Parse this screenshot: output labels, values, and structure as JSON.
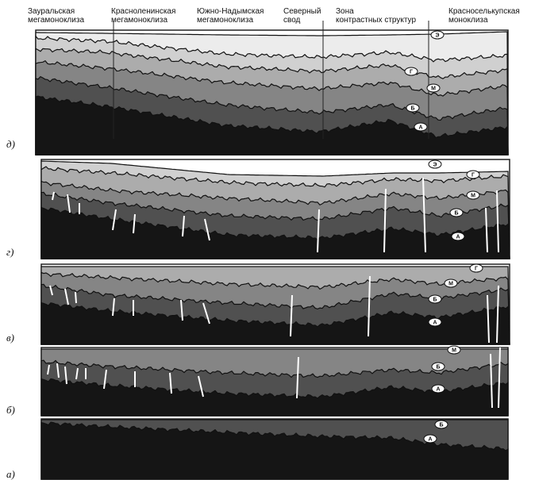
{
  "regions": [
    [
      "Зауральская",
      "мегамоноклиза"
    ],
    [
      "Красноленинская",
      "мегамоноклиза"
    ],
    [
      "Южно-Надымская",
      "мегамоноклиза"
    ],
    [
      "Северный",
      "свод"
    ],
    [
      "Зона",
      "контрастных структур"
    ],
    [
      "Красноселькупская",
      "моноклиза"
    ]
  ],
  "panels": [
    {
      "label": "д)",
      "horizons": [
        "Э",
        "Г",
        "М",
        "Б",
        "А"
      ]
    },
    {
      "label": "г)",
      "horizons": [
        "Э",
        "Г",
        "М",
        "Б",
        "А"
      ]
    },
    {
      "label": "в)",
      "horizons": [
        "Г",
        "М",
        "Б",
        "А"
      ]
    },
    {
      "label": "б)",
      "horizons": [
        "М",
        "Б",
        "А"
      ]
    },
    {
      "label": "а)",
      "horizons": [
        "Б",
        "А"
      ]
    }
  ]
}
